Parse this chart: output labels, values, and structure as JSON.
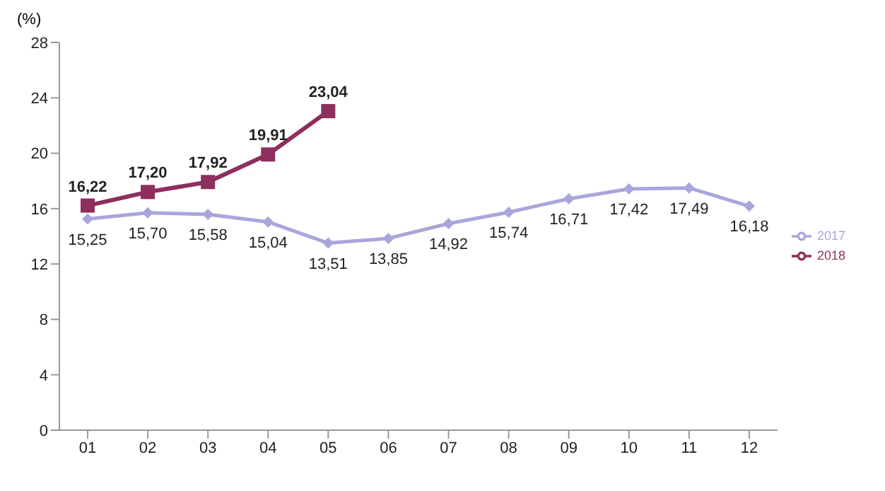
{
  "chart_data": {
    "type": "line",
    "ylabel": "(%)",
    "categories": [
      "01",
      "02",
      "03",
      "04",
      "05",
      "06",
      "07",
      "08",
      "09",
      "10",
      "11",
      "12"
    ],
    "series": [
      {
        "name": "2017",
        "color": "#a9a6dc",
        "marker": "diamond",
        "values": [
          15.25,
          15.7,
          15.58,
          15.04,
          13.51,
          13.85,
          14.92,
          15.74,
          16.71,
          17.42,
          17.49,
          16.18
        ],
        "value_labels": [
          "15,25",
          "15,70",
          "15,58",
          "15,04",
          "13,51",
          "13,85",
          "14,92",
          "15,74",
          "16,71",
          "17,42",
          "17,49",
          "16,18"
        ]
      },
      {
        "name": "2018",
        "color": "#8e2f5e",
        "marker": "square",
        "values": [
          16.22,
          17.2,
          17.92,
          19.91,
          23.04,
          null,
          null,
          null,
          null,
          null,
          null,
          null
        ],
        "value_labels": [
          "16,22",
          "17,20",
          "17,92",
          "19,91",
          "23,04",
          null,
          null,
          null,
          null,
          null,
          null,
          null
        ]
      }
    ],
    "ylim": [
      0,
      28
    ],
    "yticks": [
      0,
      4,
      8,
      12,
      16,
      20,
      24,
      28
    ],
    "grid": false,
    "legend": "right"
  }
}
